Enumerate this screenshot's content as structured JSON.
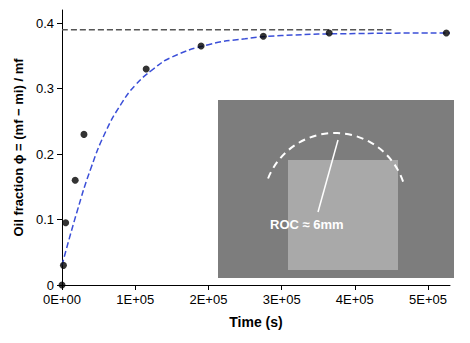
{
  "chart_data": {
    "type": "scatter",
    "xlabel": "Time (s)",
    "ylabel": "Oil fraction ϕ = (mf − mi) / mf",
    "xlim": [
      0,
      530000
    ],
    "xticks": [
      {
        "value": 0,
        "label": "0E+00"
      },
      {
        "value": 100000,
        "label": "1E+05"
      },
      {
        "value": 200000,
        "label": "2E+05"
      },
      {
        "value": 300000,
        "label": "3E+05"
      },
      {
        "value": 400000,
        "label": "4E+05"
      },
      {
        "value": 500000,
        "label": "5E+05"
      }
    ],
    "ylim": [
      0,
      0.42
    ],
    "yticks": [
      0,
      0.1,
      0.2,
      0.3,
      0.4
    ],
    "grid": false,
    "series": [
      {
        "type": "line",
        "color": "#3b4fd8",
        "line_style": "dashed",
        "x": [
          0,
          20000,
          40000,
          60000,
          80000,
          100000,
          125000,
          150000,
          200000,
          250000,
          300000,
          400000,
          530000
        ],
        "values": [
          0.03,
          0.11,
          0.18,
          0.235,
          0.275,
          0.305,
          0.33,
          0.348,
          0.367,
          0.376,
          0.381,
          0.384,
          0.385
        ]
      },
      {
        "type": "line",
        "color": "#555555",
        "line_style": "dashed",
        "x": [
          0,
          450000
        ],
        "values": [
          0.39,
          0.39
        ]
      },
      {
        "type": "scatter",
        "color": "#000000",
        "marker": "circle",
        "x": [
          0,
          2000,
          5000,
          18000,
          30000,
          115000,
          190000,
          275000,
          365000,
          525000
        ],
        "values": [
          0,
          0.03,
          0.095,
          0.16,
          0.23,
          0.33,
          0.365,
          0.38,
          0.385,
          0.385
        ]
      }
    ],
    "annotations": [
      {
        "text": "ROC ≈ 6mm"
      }
    ]
  }
}
